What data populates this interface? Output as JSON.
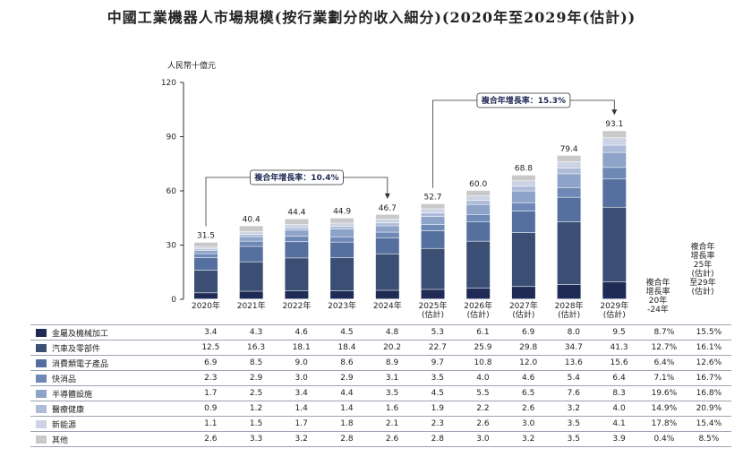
{
  "title": "中國工業機器人市場規模(按行業劃分的收入細分)(2020年至2029年(估計))",
  "colors": {
    "series": [
      "#1f2a55",
      "#3b4f74",
      "#55709e",
      "#6e89b5",
      "#8ea3c8",
      "#aebbd8",
      "#cbd3e5",
      "#c9c9c9"
    ],
    "grid": "#9aa3b0",
    "line": "#333333",
    "cagr_text": "#1f2a55"
  },
  "chart_data": {
    "type": "bar",
    "stacked": true,
    "ylabel": "人民幣十億元",
    "ylim": [
      0,
      120
    ],
    "yticks": [
      0,
      30,
      60,
      90,
      120
    ],
    "categories": [
      "2020年",
      "2021年",
      "2022年",
      "2023年",
      "2024年",
      "2025年\n(估計)",
      "2026年\n(估計)",
      "2027年\n(估計)",
      "2028年\n(估計)",
      "2029年\n(估計)"
    ],
    "totals": [
      31.5,
      40.4,
      44.4,
      44.9,
      46.7,
      52.7,
      60.0,
      68.8,
      79.4,
      93.1
    ],
    "totals_text": [
      "31.5",
      "40.4",
      "44.4",
      "44.9",
      "46.7",
      "52.7",
      "60.0",
      "68.8",
      "79.4",
      "93.1"
    ],
    "series": [
      {
        "name": "金屬及機械加工",
        "values": [
          3.4,
          4.3,
          4.6,
          4.5,
          4.8,
          5.3,
          6.1,
          6.9,
          8.0,
          9.5
        ],
        "cagr_2020_2024": "8.7%",
        "cagr_2025_2029": "15.5%"
      },
      {
        "name": "汽車及零部件",
        "values": [
          12.5,
          16.3,
          18.1,
          18.4,
          20.2,
          22.7,
          25.9,
          29.8,
          34.7,
          41.3
        ],
        "cagr_2020_2024": "12.7%",
        "cagr_2025_2029": "16.1%"
      },
      {
        "name": "消費類電子產品",
        "values": [
          6.9,
          8.5,
          9.0,
          8.6,
          8.9,
          9.7,
          10.8,
          12.0,
          13.6,
          15.6
        ],
        "cagr_2020_2024": "6.4%",
        "cagr_2025_2029": "12.6%"
      },
      {
        "name": "快消品",
        "values": [
          2.3,
          2.9,
          3.0,
          2.9,
          3.1,
          3.5,
          4.0,
          4.6,
          5.4,
          6.4
        ],
        "cagr_2020_2024": "7.1%",
        "cagr_2025_2029": "16.7%"
      },
      {
        "name": "半導體設施",
        "values": [
          1.7,
          2.5,
          3.4,
          4.4,
          3.5,
          4.5,
          5.5,
          6.5,
          7.6,
          8.3
        ],
        "cagr_2020_2024": "19.6%",
        "cagr_2025_2029": "16.8%"
      },
      {
        "name": "醫療健康",
        "values": [
          0.9,
          1.2,
          1.4,
          1.4,
          1.6,
          1.9,
          2.2,
          2.6,
          3.2,
          4.0
        ],
        "cagr_2020_2024": "14.9%",
        "cagr_2025_2029": "20.9%"
      },
      {
        "name": "新能源",
        "values": [
          1.1,
          1.5,
          1.7,
          1.8,
          2.1,
          2.3,
          2.6,
          3.0,
          3.5,
          4.1
        ],
        "cagr_2020_2024": "17.8%",
        "cagr_2025_2029": "15.4%"
      },
      {
        "name": "其他",
        "values": [
          2.6,
          3.3,
          3.2,
          2.8,
          2.6,
          2.8,
          3.0,
          3.2,
          3.5,
          3.9
        ],
        "cagr_2020_2024": "0.4%",
        "cagr_2025_2029": "8.5%"
      }
    ],
    "cagr_labels": [
      "複合年增長率：10.4%",
      "複合年增長率：15.3%"
    ],
    "cagr_col_headers": [
      "複合年\n增長率\n20年\n-24年",
      "複合年\n增長率\n25年\n(估計)\n至29年\n(估計)"
    ]
  }
}
